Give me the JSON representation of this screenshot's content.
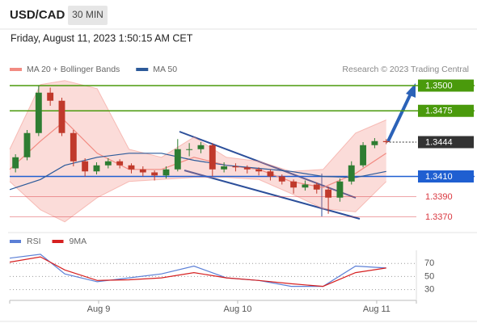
{
  "header": {
    "symbol": "USD/CAD",
    "timeframe": "30 MIN",
    "datetime": "Friday, August 11, 2023 1:50:15 AM CET"
  },
  "chart_data": [
    {
      "type": "candlestick",
      "source": "Research © 2023 Trading Central",
      "x": [
        1,
        3,
        5,
        7,
        9,
        11,
        13,
        15,
        17,
        19,
        21,
        23,
        25,
        27,
        29,
        31,
        33,
        35,
        37,
        39,
        41,
        43,
        45,
        47,
        49,
        51,
        53,
        55,
        57,
        59,
        61,
        63,
        65
      ],
      "open": [
        1.3418,
        1.3429,
        1.3453,
        1.3493,
        1.3485,
        1.3453,
        1.3425,
        1.3415,
        1.3421,
        1.3425,
        1.3421,
        1.3417,
        1.3414,
        1.3411,
        1.3417,
        1.3437,
        1.3437,
        1.3441,
        1.3417,
        1.342,
        1.3419,
        1.3417,
        1.3415,
        1.341,
        1.3405,
        1.3399,
        1.3402,
        1.3397,
        1.3389,
        1.3405,
        1.3421,
        1.3441,
        1.3445
      ],
      "high": [
        1.3432,
        1.3456,
        1.35,
        1.3498,
        1.3488,
        1.3456,
        1.3428,
        1.3424,
        1.3428,
        1.3427,
        1.3423,
        1.342,
        1.3416,
        1.342,
        1.3447,
        1.3443,
        1.3444,
        1.3443,
        1.3424,
        1.3423,
        1.3421,
        1.3419,
        1.3417,
        1.3412,
        1.3407,
        1.3406,
        1.3404,
        1.34,
        1.3408,
        1.3425,
        1.3444,
        1.3448,
        1.3447
      ],
      "low": [
        1.3414,
        1.3426,
        1.345,
        1.348,
        1.345,
        1.342,
        1.341,
        1.3412,
        1.3418,
        1.3418,
        1.3413,
        1.341,
        1.3406,
        1.3408,
        1.3415,
        1.343,
        1.3433,
        1.341,
        1.3414,
        1.3415,
        1.3413,
        1.3411,
        1.3406,
        1.3402,
        1.3393,
        1.3396,
        1.3393,
        1.3373,
        1.3385,
        1.3402,
        1.3419,
        1.3438,
        1.3442
      ],
      "close": [
        1.3429,
        1.3453,
        1.3493,
        1.3485,
        1.3453,
        1.3425,
        1.3415,
        1.3421,
        1.3425,
        1.3421,
        1.3417,
        1.3414,
        1.3411,
        1.3417,
        1.3437,
        1.3437,
        1.3441,
        1.3417,
        1.342,
        1.3419,
        1.3417,
        1.3415,
        1.341,
        1.3405,
        1.3399,
        1.3402,
        1.3397,
        1.3389,
        1.3405,
        1.3421,
        1.3441,
        1.3445,
        1.3444
      ],
      "up_color": "#2e7d32",
      "down_color": "#c0392b",
      "series": [
        {
          "name": "MA 20 + Bollinger Bands",
          "color": "#f28b82",
          "x": [
            0,
            5.3,
            9.5,
            15.1,
            20.6,
            26.2,
            31.8,
            37.4,
            43.0,
            48.6,
            54.1,
            59.7,
            65.0
          ],
          "values": [
            1.3417,
            1.3445,
            1.3465,
            1.3433,
            1.3417,
            1.3417,
            1.3429,
            1.3421,
            1.3417,
            1.3405,
            1.3399,
            1.3413,
            1.3433
          ],
          "upper": [
            1.3437,
            1.3501,
            1.3505,
            1.3497,
            1.3437,
            1.3429,
            1.3449,
            1.3429,
            1.3425,
            1.3415,
            1.3417,
            1.3453,
            1.3466
          ],
          "lower": [
            1.3405,
            1.3377,
            1.3365,
            1.3389,
            1.3405,
            1.3407,
            1.3409,
            1.3409,
            1.3407,
            1.3393,
            1.3378,
            1.3375,
            1.3405
          ]
        },
        {
          "name": "MA 50",
          "color": "#2c5a9a",
          "x": [
            0,
            5.3,
            9.5,
            15.1,
            20.6,
            26.2,
            31.8,
            37.4,
            43.0,
            48.6,
            54.1,
            59.7,
            65.0
          ],
          "values": [
            1.3397,
            1.3407,
            1.3421,
            1.3429,
            1.3433,
            1.3433,
            1.3426,
            1.3421,
            1.3418,
            1.3415,
            1.341,
            1.3409,
            1.3415
          ]
        }
      ],
      "levels": [
        {
          "value": 1.35,
          "label": "1.3500",
          "color": "#4a9a0c",
          "boxed": true
        },
        {
          "value": 1.3475,
          "label": "1.3475",
          "color": "#4a9a0c",
          "boxed": true
        },
        {
          "value": 1.3444,
          "label": "1.3444",
          "color": "#333333",
          "boxed": true
        },
        {
          "value": 1.341,
          "label": "1.3410",
          "color": "#1f5fd1",
          "boxed": true
        },
        {
          "value": 1.339,
          "label": "1.3390",
          "color": "#d9363e",
          "boxed": false
        },
        {
          "value": 1.337,
          "label": "1.3370",
          "color": "#d9363e",
          "boxed": false
        }
      ],
      "xlim": [
        0,
        70.2
      ],
      "ylim": [
        1.336,
        1.3508
      ]
    },
    {
      "type": "line",
      "x": [
        0,
        5.3,
        9.5,
        15.1,
        20.6,
        26.2,
        31.8,
        37.4,
        43.0,
        48.6,
        54.1,
        59.7,
        65.0
      ],
      "series": [
        {
          "name": "RSI",
          "color": "#5b7fd6",
          "values": [
            78,
            84,
            54,
            42,
            48,
            54,
            66,
            48,
            44,
            35,
            35,
            66,
            63
          ]
        },
        {
          "name": "9MA",
          "color": "#d62020",
          "values": [
            72,
            80,
            60,
            44,
            45,
            48,
            56,
            48,
            44,
            39,
            35,
            56,
            63
          ]
        }
      ],
      "xlim": [
        0,
        70.2
      ],
      "ylim": [
        16,
        90
      ],
      "yticks": [
        30,
        50,
        70
      ],
      "xticks": [
        {
          "value": 15.35,
          "label": "Aug 9"
        },
        {
          "value": 39.35,
          "label": "Aug 10"
        },
        {
          "value": 63.35,
          "label": "Aug 11"
        }
      ]
    }
  ]
}
